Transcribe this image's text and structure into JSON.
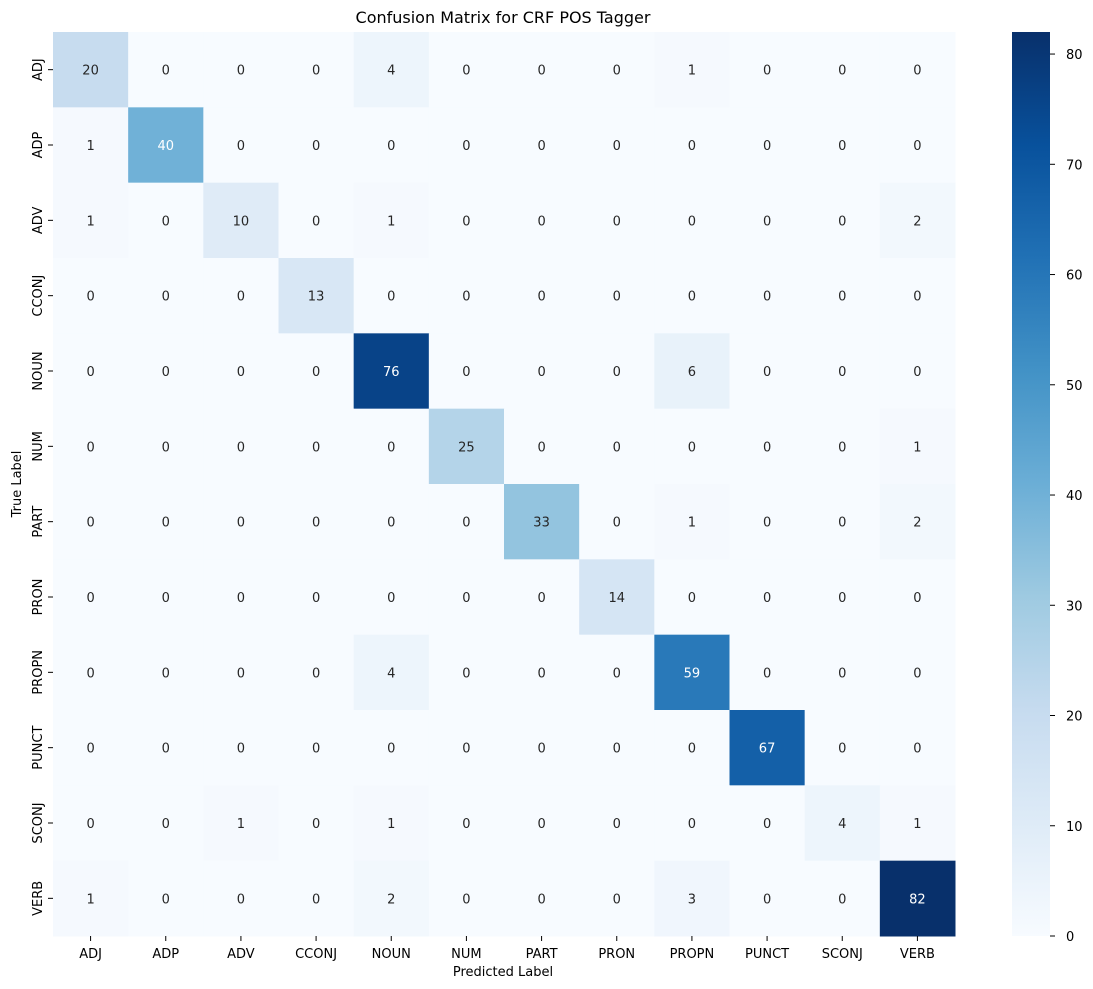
{
  "chart_data": {
    "type": "heatmap",
    "title": "Confusion Matrix for CRF POS Tagger",
    "xlabel": "Predicted Label",
    "ylabel": "True Label",
    "x_categories": [
      "ADJ",
      "ADP",
      "ADV",
      "CCONJ",
      "NOUN",
      "NUM",
      "PART",
      "PRON",
      "PROPN",
      "PUNCT",
      "SCONJ",
      "VERB"
    ],
    "y_categories": [
      "ADJ",
      "ADP",
      "ADV",
      "CCONJ",
      "NOUN",
      "NUM",
      "PART",
      "PRON",
      "PROPN",
      "PUNCT",
      "SCONJ",
      "VERB"
    ],
    "values": [
      [
        20,
        0,
        0,
        0,
        4,
        0,
        0,
        0,
        1,
        0,
        0,
        0
      ],
      [
        1,
        40,
        0,
        0,
        0,
        0,
        0,
        0,
        0,
        0,
        0,
        0
      ],
      [
        1,
        0,
        10,
        0,
        1,
        0,
        0,
        0,
        0,
        0,
        0,
        2
      ],
      [
        0,
        0,
        0,
        13,
        0,
        0,
        0,
        0,
        0,
        0,
        0,
        0
      ],
      [
        0,
        0,
        0,
        0,
        76,
        0,
        0,
        0,
        6,
        0,
        0,
        0
      ],
      [
        0,
        0,
        0,
        0,
        0,
        25,
        0,
        0,
        0,
        0,
        0,
        1
      ],
      [
        0,
        0,
        0,
        0,
        0,
        0,
        33,
        0,
        1,
        0,
        0,
        2
      ],
      [
        0,
        0,
        0,
        0,
        0,
        0,
        0,
        14,
        0,
        0,
        0,
        0
      ],
      [
        0,
        0,
        0,
        0,
        4,
        0,
        0,
        0,
        59,
        0,
        0,
        0
      ],
      [
        0,
        0,
        0,
        0,
        0,
        0,
        0,
        0,
        0,
        67,
        0,
        0
      ],
      [
        0,
        0,
        1,
        0,
        1,
        0,
        0,
        0,
        0,
        0,
        4,
        1
      ],
      [
        1,
        0,
        0,
        0,
        2,
        0,
        0,
        0,
        3,
        0,
        0,
        82
      ]
    ],
    "colormap": "Blues",
    "vmin": 0,
    "vmax": 82,
    "colorbar_ticks": [
      0,
      10,
      20,
      30,
      40,
      50,
      60,
      70,
      80
    ]
  }
}
